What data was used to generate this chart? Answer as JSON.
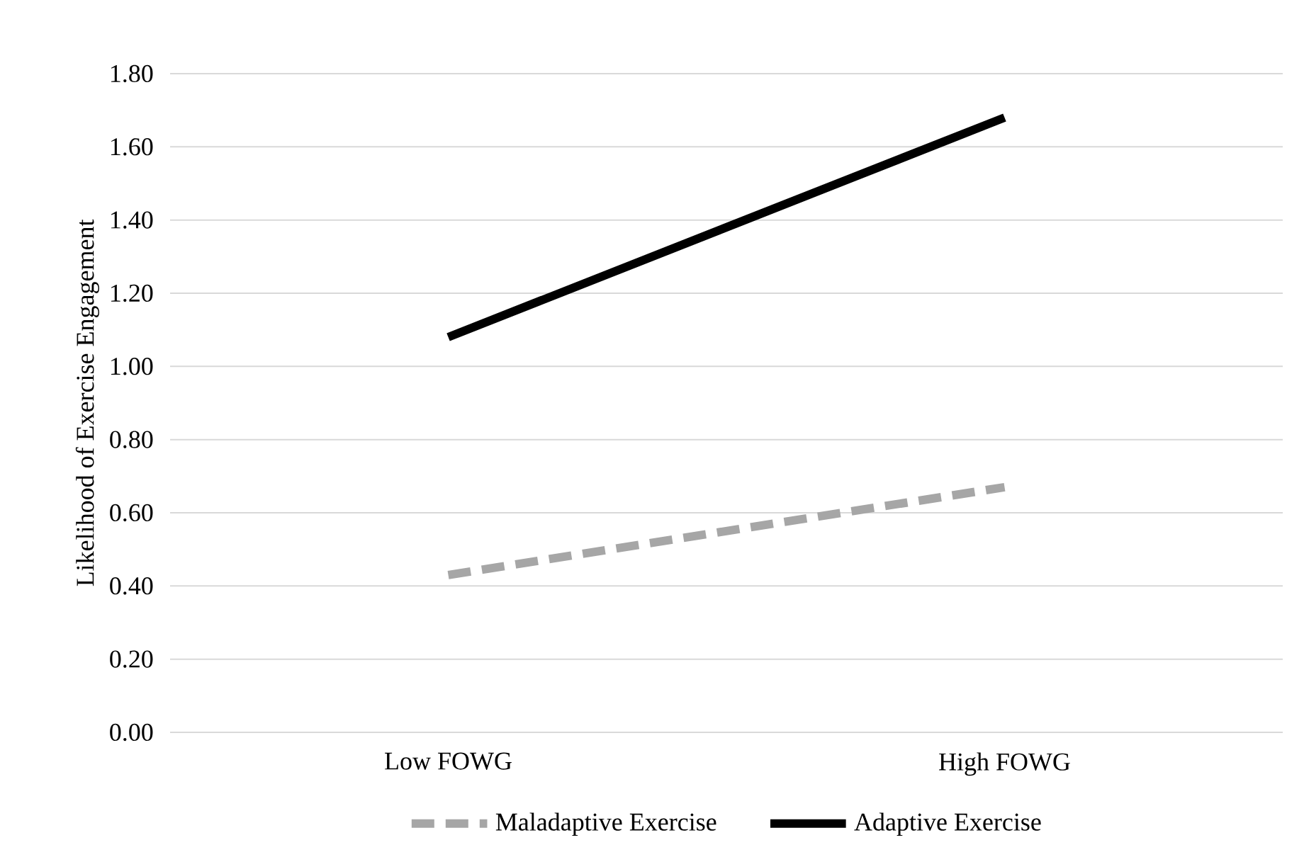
{
  "chart_data": {
    "type": "line",
    "ylabel": "Likelihood of  Exercise Engagement",
    "categories": [
      "Low FOWG",
      "High FOWG"
    ],
    "series": [
      {
        "name": "Maladaptive Exercise",
        "color": "#a6a6a6",
        "values": [
          0.43,
          0.67
        ],
        "line_style": "dashed"
      },
      {
        "name": "Adaptive Exercise",
        "color": "#000000",
        "values": [
          1.08,
          1.68
        ],
        "line_style": "solid"
      }
    ],
    "ylim": [
      0,
      1.8
    ],
    "yticks": [
      {
        "value": 0,
        "label": "0.00"
      },
      {
        "value": 0.2,
        "label": "0.20"
      },
      {
        "value": 0.4,
        "label": "0.40"
      },
      {
        "value": 0.6,
        "label": "0.60"
      },
      {
        "value": 0.8,
        "label": "0.80"
      },
      {
        "value": 1.0,
        "label": "1.00"
      },
      {
        "value": 1.2,
        "label": "1.20"
      },
      {
        "value": 1.4,
        "label": "1.40"
      },
      {
        "value": 1.6,
        "label": "1.60"
      },
      {
        "value": 1.8,
        "label": "1.80"
      }
    ],
    "grid": "y",
    "legend": "bottom",
    "marker": "none"
  }
}
